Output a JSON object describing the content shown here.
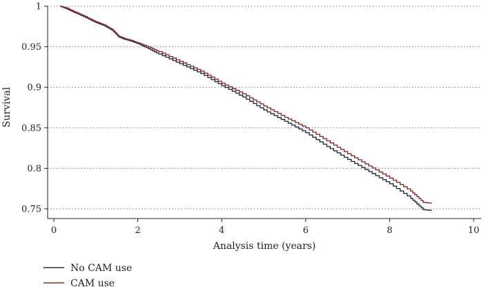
{
  "chart_data": {
    "type": "line",
    "title": "",
    "xlabel": "Analysis time (years)",
    "ylabel": "Survival",
    "xlim": [
      0,
      10
    ],
    "ylim": [
      0.75,
      1.0
    ],
    "xticks": [
      0,
      2,
      4,
      6,
      8,
      10
    ],
    "yticks": [
      0.75,
      0.8,
      0.85,
      0.9,
      0.95,
      1
    ],
    "ytick_labels": [
      "0.75",
      "0.8",
      "0.85",
      "0.9",
      "0.95",
      "1"
    ],
    "grid": "horizontal dotted",
    "legend_position": "bottom-left",
    "series": [
      {
        "name": "No CAM use",
        "color": "#1f2d4d",
        "x": [
          0.15,
          0.3,
          0.5,
          0.8,
          1.0,
          1.2,
          1.4,
          1.55,
          1.7,
          1.9,
          2.0,
          2.2,
          2.5,
          3.0,
          3.5,
          4.0,
          4.5,
          5.0,
          5.5,
          6.0,
          6.5,
          7.0,
          7.5,
          8.0,
          8.5,
          8.8,
          9.0
        ],
        "values": [
          1.0,
          0.997,
          0.992,
          0.985,
          0.98,
          0.976,
          0.97,
          0.962,
          0.959,
          0.956,
          0.954,
          0.949,
          0.941,
          0.929,
          0.917,
          0.902,
          0.888,
          0.872,
          0.858,
          0.844,
          0.827,
          0.811,
          0.796,
          0.781,
          0.763,
          0.749,
          0.748
        ]
      },
      {
        "name": "CAM use",
        "color": "#8b2b2b",
        "x": [
          0.15,
          0.3,
          0.5,
          0.8,
          1.0,
          1.2,
          1.4,
          1.55,
          1.7,
          1.9,
          2.0,
          2.2,
          2.5,
          3.0,
          3.5,
          4.0,
          4.5,
          5.0,
          5.5,
          6.0,
          6.5,
          7.0,
          7.5,
          8.0,
          8.5,
          8.8,
          9.0
        ],
        "values": [
          1.0,
          0.998,
          0.993,
          0.986,
          0.981,
          0.977,
          0.971,
          0.963,
          0.96,
          0.957,
          0.955,
          0.951,
          0.944,
          0.932,
          0.92,
          0.905,
          0.892,
          0.877,
          0.863,
          0.85,
          0.834,
          0.818,
          0.803,
          0.788,
          0.772,
          0.758,
          0.757
        ]
      }
    ]
  }
}
